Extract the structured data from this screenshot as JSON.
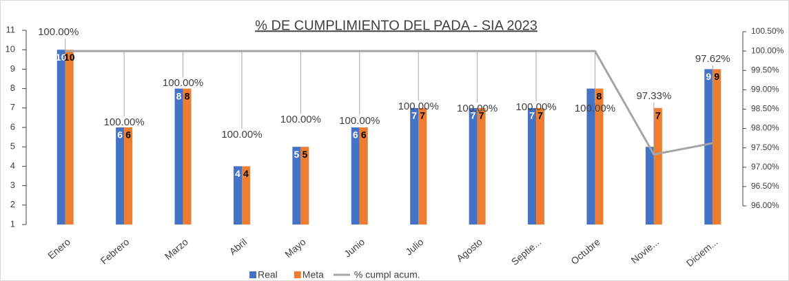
{
  "chart_data": {
    "type": "bar-line",
    "title": "% DE CUMPLIMIENTO DEL PADA - SIA 2023",
    "categories": [
      "Enero",
      "Febrero",
      "Marzo",
      "Abril",
      "Mayo",
      "Junio",
      "Julio",
      "Agosto",
      "Septie...",
      "Octubre",
      "Novie...",
      "Diciem..."
    ],
    "series": [
      {
        "name": "Real",
        "type": "bar",
        "color": "#4472c4",
        "values": [
          10,
          6,
          8,
          4,
          5,
          6,
          7,
          7,
          7,
          8,
          5,
          9
        ],
        "value_labels": [
          "10",
          "6",
          "8",
          "4",
          "5",
          "6",
          "7",
          "7",
          "7",
          null,
          null,
          "9"
        ]
      },
      {
        "name": "Meta",
        "type": "bar",
        "color": "#ed7d31",
        "values": [
          10,
          6,
          8,
          4,
          5,
          6,
          7,
          7,
          7,
          8,
          7,
          9
        ]
      },
      {
        "name": "% cumpl acum.",
        "type": "line",
        "axis": "y2",
        "color": "#a5a5a5",
        "values": [
          100,
          100,
          100,
          100,
          100,
          100,
          100,
          100,
          100,
          100,
          97.33,
          97.62
        ],
        "value_labels": [
          "100.00%",
          "100.00%",
          "100.00%",
          "100.00%",
          "100.00%",
          "100.00%",
          "100.00%",
          "100.00%",
          "100.00%",
          "100.00%",
          "97.33%",
          "97.62%"
        ]
      }
    ],
    "ylim": [
      1,
      11
    ],
    "yticks": [
      1,
      2,
      3,
      4,
      5,
      6,
      7,
      8,
      9,
      10,
      11
    ],
    "y2lim": [
      96,
      100.5
    ],
    "y2ticks": [
      {
        "value": 96,
        "label": "96.00%"
      },
      {
        "value": 96.5,
        "label": "96.50%"
      },
      {
        "value": 97,
        "label": "97.00%"
      },
      {
        "value": 97.5,
        "label": "97.50%"
      },
      {
        "value": 98,
        "label": "98.00%"
      },
      {
        "value": 98.5,
        "label": "98.50%"
      },
      {
        "value": 99,
        "label": "99.00%"
      },
      {
        "value": 99.5,
        "label": "99.50%"
      },
      {
        "value": 100,
        "label": "100.00%"
      },
      {
        "value": 100.5,
        "label": "100.50%"
      }
    ],
    "legend": "bottom"
  }
}
